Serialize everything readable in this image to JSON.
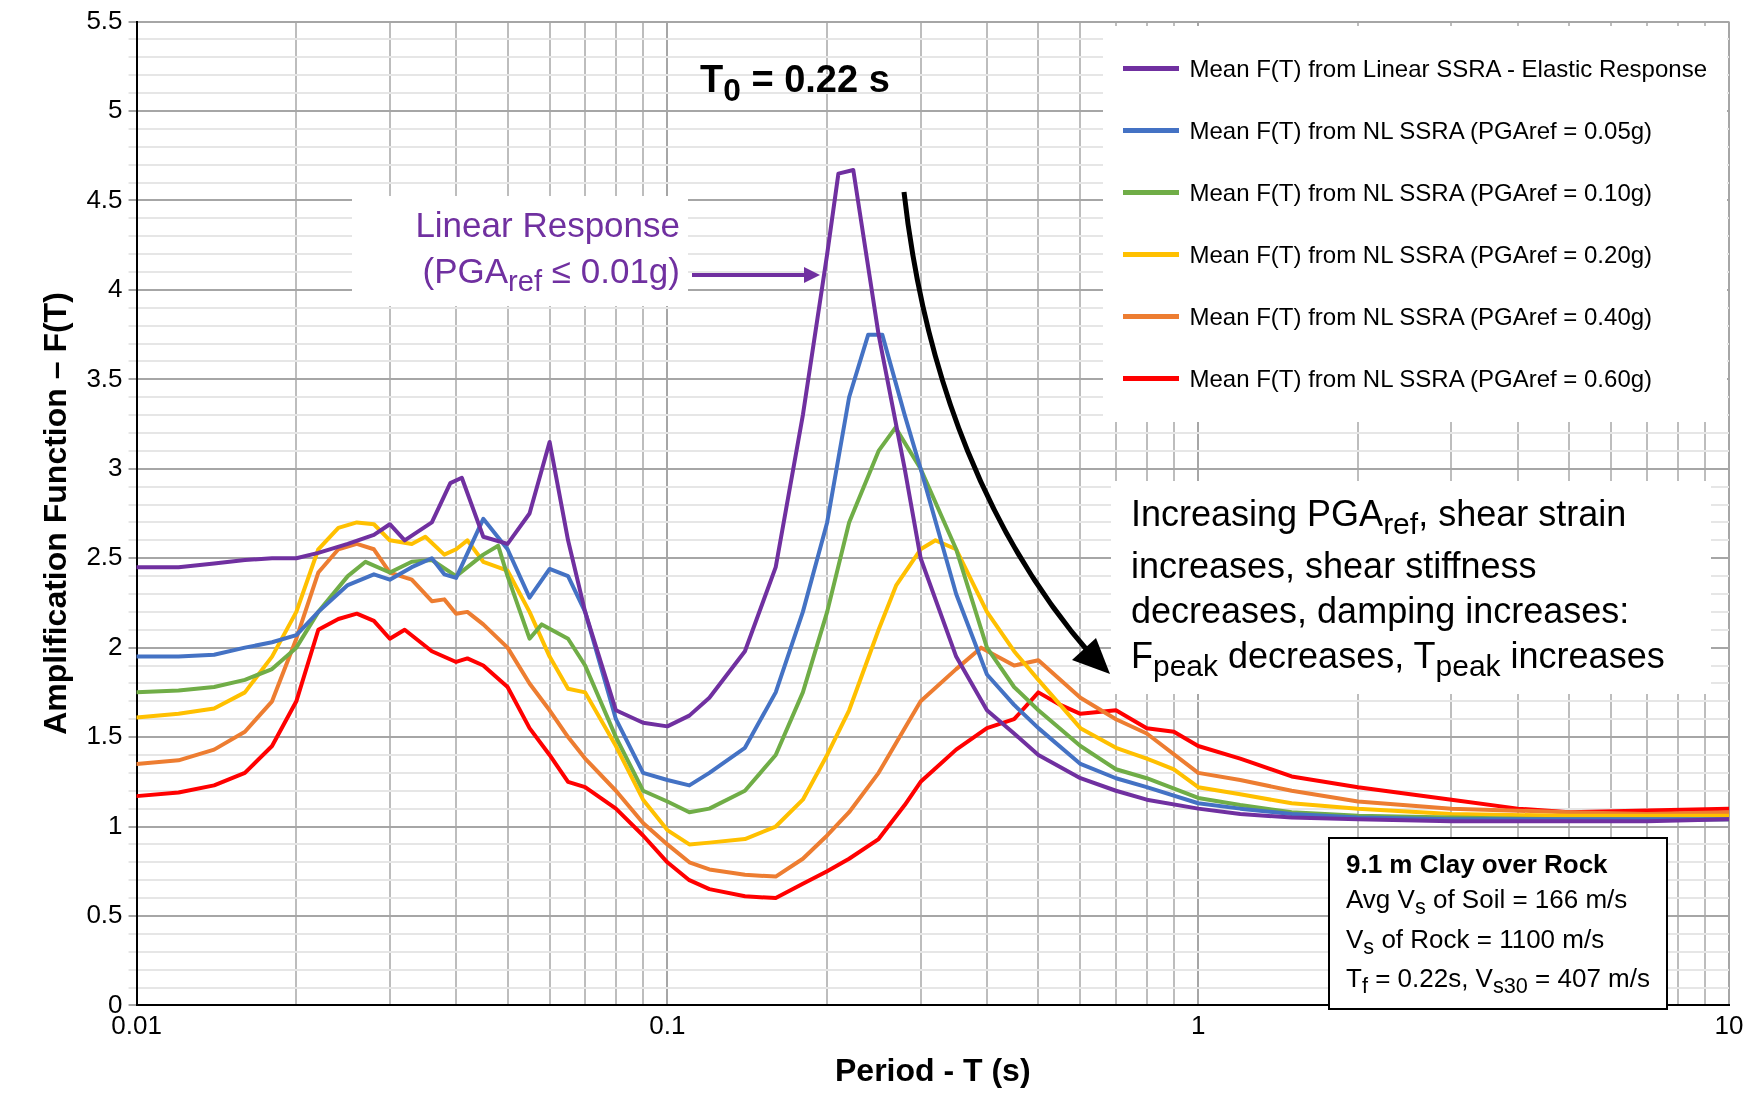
{
  "chart_data": {
    "type": "line",
    "xlabel": "Period - T (s)",
    "ylabel": "Amplification Function – F(T)",
    "log": "x",
    "grid": true,
    "legend": "top right",
    "marker": "none",
    "line_style": "solid",
    "xlim": [
      0.01,
      10
    ],
    "xticks": [
      0.01,
      {
        "value": 0.02,
        "label": null
      },
      {
        "value": 0.03,
        "label": null
      },
      {
        "value": 0.04,
        "label": null
      },
      {
        "value": 0.05,
        "label": null
      },
      {
        "value": 0.06,
        "label": null
      },
      {
        "value": 0.07,
        "label": null
      },
      {
        "value": 0.08,
        "label": null
      },
      {
        "value": 0.09,
        "label": null
      },
      0.1,
      {
        "value": 0.2,
        "label": null
      },
      {
        "value": 0.3,
        "label": null
      },
      {
        "value": 0.4,
        "label": null
      },
      {
        "value": 0.5,
        "label": null
      },
      {
        "value": 0.6,
        "label": null
      },
      {
        "value": 0.7,
        "label": null
      },
      {
        "value": 0.8,
        "label": null
      },
      {
        "value": 0.9,
        "label": null
      },
      1,
      {
        "value": 2,
        "label": null
      },
      {
        "value": 3,
        "label": null
      },
      {
        "value": 4,
        "label": null
      },
      {
        "value": 5,
        "label": null
      },
      {
        "value": 6,
        "label": null
      },
      {
        "value": 7,
        "label": null
      },
      {
        "value": 8,
        "label": null
      },
      {
        "value": 9,
        "label": null
      },
      10
    ],
    "ylim": [
      0,
      5.5
    ],
    "yticks": [
      0,
      {
        "value": 0.1,
        "label": null
      },
      {
        "value": 0.2,
        "label": null
      },
      {
        "value": 0.3,
        "label": null
      },
      {
        "value": 0.4,
        "label": null
      },
      0.5,
      {
        "value": 0.6,
        "label": null
      },
      {
        "value": 0.7,
        "label": null
      },
      {
        "value": 0.8,
        "label": null
      },
      {
        "value": 0.9,
        "label": null
      },
      1,
      {
        "value": 1.1,
        "label": null
      },
      {
        "value": 1.2,
        "label": null
      },
      {
        "value": 1.3,
        "label": null
      },
      {
        "value": 1.4,
        "label": null
      },
      1.5,
      {
        "value": 1.6,
        "label": null
      },
      {
        "value": 1.7,
        "label": null
      },
      {
        "value": 1.8,
        "label": null
      },
      {
        "value": 1.9,
        "label": null
      },
      2,
      {
        "value": 2.1,
        "label": null
      },
      {
        "value": 2.2,
        "label": null
      },
      {
        "value": 2.3,
        "label": null
      },
      {
        "value": 2.4,
        "label": null
      },
      2.5,
      {
        "value": 2.6,
        "label": null
      },
      {
        "value": 2.7,
        "label": null
      },
      {
        "value": 2.8,
        "label": null
      },
      {
        "value": 2.9,
        "label": null
      },
      3,
      {
        "value": 3.1,
        "label": null
      },
      {
        "value": 3.2,
        "label": null
      },
      {
        "value": 3.3,
        "label": null
      },
      {
        "value": 3.4,
        "label": null
      },
      3.5,
      {
        "value": 3.6,
        "label": null
      },
      {
        "value": 3.7,
        "label": null
      },
      {
        "value": 3.8,
        "label": null
      },
      {
        "value": 3.9,
        "label": null
      },
      4,
      {
        "value": 4.1,
        "label": null
      },
      {
        "value": 4.2,
        "label": null
      },
      {
        "value": 4.3,
        "label": null
      },
      {
        "value": 4.4,
        "label": null
      },
      4.5,
      {
        "value": 4.6,
        "label": null
      },
      {
        "value": 4.7,
        "label": null
      },
      {
        "value": 4.8,
        "label": null
      },
      {
        "value": 4.9,
        "label": null
      },
      5,
      {
        "value": 5.1,
        "label": null
      },
      {
        "value": 5.2,
        "label": null
      },
      {
        "value": 5.3,
        "label": null
      },
      {
        "value": 5.4,
        "label": null
      },
      5.5
    ],
    "series": [
      {
        "name": "Mean F(T) from Linear SSRA - Elastic Response",
        "color": "#7030a0",
        "x": [
          0.01,
          0.012,
          0.014,
          0.016,
          0.018,
          0.02,
          0.022,
          0.025,
          0.028,
          0.03,
          0.032,
          0.036,
          0.039,
          0.041,
          0.045,
          0.05,
          0.055,
          0.06,
          0.065,
          0.07,
          0.08,
          0.09,
          0.1,
          0.11,
          0.12,
          0.14,
          0.16,
          0.18,
          0.2,
          0.21,
          0.224,
          0.25,
          0.28,
          0.3,
          0.35,
          0.4,
          0.45,
          0.5,
          0.6,
          0.7,
          0.8,
          1,
          1.2,
          1.5,
          2,
          3,
          5,
          7,
          10
        ],
        "values": [
          2.45,
          2.45,
          2.47,
          2.49,
          2.5,
          2.5,
          2.53,
          2.58,
          2.63,
          2.69,
          2.6,
          2.7,
          2.92,
          2.95,
          2.62,
          2.58,
          2.75,
          3.15,
          2.6,
          2.2,
          1.65,
          1.58,
          1.56,
          1.62,
          1.72,
          1.98,
          2.45,
          3.3,
          4.2,
          4.65,
          4.67,
          3.75,
          3.0,
          2.5,
          1.95,
          1.65,
          1.52,
          1.4,
          1.27,
          1.2,
          1.15,
          1.1,
          1.07,
          1.05,
          1.04,
          1.03,
          1.03,
          1.03,
          1.04
        ]
      },
      {
        "name": "Mean F(T) from NL SSRA (PGAref = 0.05g)",
        "color": "#4472c4",
        "x": [
          0.01,
          0.012,
          0.014,
          0.016,
          0.018,
          0.02,
          0.022,
          0.025,
          0.028,
          0.03,
          0.033,
          0.036,
          0.038,
          0.04,
          0.045,
          0.05,
          0.055,
          0.06,
          0.065,
          0.07,
          0.08,
          0.09,
          0.1,
          0.11,
          0.12,
          0.14,
          0.16,
          0.18,
          0.2,
          0.22,
          0.239,
          0.254,
          0.28,
          0.3,
          0.35,
          0.4,
          0.45,
          0.5,
          0.6,
          0.7,
          0.8,
          1,
          1.2,
          1.5,
          2,
          3,
          5,
          10
        ],
        "values": [
          1.95,
          1.95,
          1.96,
          2.0,
          2.03,
          2.07,
          2.2,
          2.35,
          2.41,
          2.38,
          2.45,
          2.5,
          2.41,
          2.39,
          2.72,
          2.55,
          2.28,
          2.44,
          2.4,
          2.2,
          1.6,
          1.3,
          1.26,
          1.23,
          1.3,
          1.44,
          1.75,
          2.2,
          2.7,
          3.4,
          3.75,
          3.75,
          3.3,
          3.0,
          2.3,
          1.85,
          1.68,
          1.55,
          1.35,
          1.27,
          1.22,
          1.13,
          1.1,
          1.07,
          1.05,
          1.04,
          1.04,
          1.04
        ]
      },
      {
        "name": "Mean F(T) from NL SSRA (PGAref = 0.10g)",
        "color": "#70ad47",
        "x": [
          0.01,
          0.012,
          0.014,
          0.016,
          0.018,
          0.02,
          0.022,
          0.025,
          0.027,
          0.03,
          0.033,
          0.036,
          0.04,
          0.045,
          0.048,
          0.05,
          0.055,
          0.058,
          0.065,
          0.07,
          0.08,
          0.09,
          0.1,
          0.11,
          0.12,
          0.14,
          0.16,
          0.18,
          0.2,
          0.22,
          0.25,
          0.269,
          0.3,
          0.35,
          0.4,
          0.45,
          0.5,
          0.6,
          0.7,
          0.8,
          1,
          1.2,
          1.5,
          2,
          3,
          5,
          10
        ],
        "values": [
          1.75,
          1.76,
          1.78,
          1.82,
          1.88,
          2.0,
          2.2,
          2.4,
          2.48,
          2.42,
          2.48,
          2.49,
          2.4,
          2.52,
          2.57,
          2.4,
          2.05,
          2.13,
          2.05,
          1.9,
          1.5,
          1.2,
          1.14,
          1.08,
          1.1,
          1.2,
          1.4,
          1.75,
          2.2,
          2.7,
          3.1,
          3.23,
          3.0,
          2.55,
          2.0,
          1.78,
          1.65,
          1.45,
          1.32,
          1.27,
          1.16,
          1.12,
          1.08,
          1.06,
          1.05,
          1.04,
          1.04
        ]
      },
      {
        "name": "Mean F(T) from NL SSRA (PGAref = 0.20g)",
        "color": "#ffc000",
        "x": [
          0.01,
          0.012,
          0.014,
          0.016,
          0.018,
          0.02,
          0.022,
          0.024,
          0.026,
          0.028,
          0.03,
          0.033,
          0.035,
          0.038,
          0.04,
          0.042,
          0.045,
          0.05,
          0.055,
          0.06,
          0.065,
          0.07,
          0.08,
          0.09,
          0.1,
          0.11,
          0.12,
          0.14,
          0.16,
          0.18,
          0.2,
          0.22,
          0.25,
          0.27,
          0.3,
          0.32,
          0.35,
          0.4,
          0.45,
          0.5,
          0.6,
          0.7,
          0.8,
          0.9,
          1,
          1.2,
          1.5,
          2,
          3,
          5,
          7,
          10
        ],
        "values": [
          1.61,
          1.63,
          1.66,
          1.75,
          1.95,
          2.2,
          2.55,
          2.67,
          2.7,
          2.69,
          2.6,
          2.58,
          2.62,
          2.52,
          2.55,
          2.6,
          2.48,
          2.43,
          2.2,
          1.95,
          1.77,
          1.75,
          1.45,
          1.15,
          0.98,
          0.9,
          0.91,
          0.93,
          1.0,
          1.15,
          1.4,
          1.65,
          2.1,
          2.35,
          2.55,
          2.6,
          2.55,
          2.2,
          1.98,
          1.82,
          1.55,
          1.44,
          1.38,
          1.32,
          1.22,
          1.18,
          1.13,
          1.1,
          1.07,
          1.06,
          1.06,
          1.06
        ]
      },
      {
        "name": "Mean F(T) from NL SSRA (PGAref = 0.40g)",
        "color": "#ed7d31",
        "x": [
          0.01,
          0.012,
          0.014,
          0.016,
          0.018,
          0.02,
          0.022,
          0.024,
          0.026,
          0.028,
          0.03,
          0.033,
          0.036,
          0.038,
          0.04,
          0.042,
          0.045,
          0.05,
          0.055,
          0.06,
          0.065,
          0.07,
          0.08,
          0.09,
          0.1,
          0.11,
          0.12,
          0.14,
          0.16,
          0.18,
          0.2,
          0.22,
          0.25,
          0.28,
          0.3,
          0.35,
          0.39,
          0.45,
          0.5,
          0.6,
          0.7,
          0.8,
          1,
          1.2,
          1.5,
          2,
          3,
          5,
          7,
          10
        ],
        "values": [
          1.35,
          1.37,
          1.43,
          1.53,
          1.7,
          2.05,
          2.42,
          2.55,
          2.58,
          2.55,
          2.42,
          2.38,
          2.26,
          2.27,
          2.19,
          2.2,
          2.13,
          2.0,
          1.8,
          1.65,
          1.5,
          1.38,
          1.2,
          1.02,
          0.9,
          0.8,
          0.76,
          0.73,
          0.72,
          0.82,
          0.95,
          1.08,
          1.3,
          1.55,
          1.7,
          1.88,
          2.0,
          1.9,
          1.93,
          1.72,
          1.6,
          1.52,
          1.3,
          1.26,
          1.2,
          1.14,
          1.1,
          1.08,
          1.07,
          1.08
        ]
      },
      {
        "name": "Mean F(T) from NL SSRA (PGAref = 0.60g)",
        "color": "#ff0000",
        "x": [
          0.01,
          0.012,
          0.014,
          0.016,
          0.018,
          0.02,
          0.022,
          0.024,
          0.026,
          0.028,
          0.03,
          0.032,
          0.036,
          0.04,
          0.042,
          0.045,
          0.05,
          0.055,
          0.06,
          0.065,
          0.07,
          0.08,
          0.09,
          0.1,
          0.11,
          0.12,
          0.14,
          0.16,
          0.18,
          0.2,
          0.22,
          0.25,
          0.28,
          0.3,
          0.35,
          0.4,
          0.45,
          0.5,
          0.55,
          0.6,
          0.7,
          0.8,
          0.9,
          1,
          1.2,
          1.5,
          2,
          3,
          4,
          5,
          7,
          10
        ],
        "values": [
          1.17,
          1.19,
          1.23,
          1.3,
          1.45,
          1.7,
          2.1,
          2.16,
          2.19,
          2.15,
          2.05,
          2.1,
          1.98,
          1.92,
          1.94,
          1.9,
          1.78,
          1.55,
          1.4,
          1.25,
          1.22,
          1.1,
          0.95,
          0.8,
          0.7,
          0.65,
          0.61,
          0.6,
          0.68,
          0.75,
          0.82,
          0.93,
          1.12,
          1.25,
          1.43,
          1.55,
          1.6,
          1.75,
          1.68,
          1.63,
          1.65,
          1.55,
          1.53,
          1.45,
          1.38,
          1.28,
          1.22,
          1.15,
          1.1,
          1.08,
          1.09,
          1.1
        ]
      }
    ],
    "annotations": [
      "T$_{0}$ = 0.22 s",
      "Linear Response\n(PGA$_{ref}$ ≤ 0.01g)",
      "Increasing PGA$_{ref}$, shear strain increases, shear stiffness decreases, damping increases: F$_{peak}$ decreases, T$_{peak}$ increases",
      "9.1 m Clay over Rock\nAvg V$_{s}$ of Soil = 166 m/s\nV$_{s}$ of Rock = 1100 m/s\nT$_{f}$ = 0.22s, V$_{s30}$ = 407 m/s"
    ]
  }
}
